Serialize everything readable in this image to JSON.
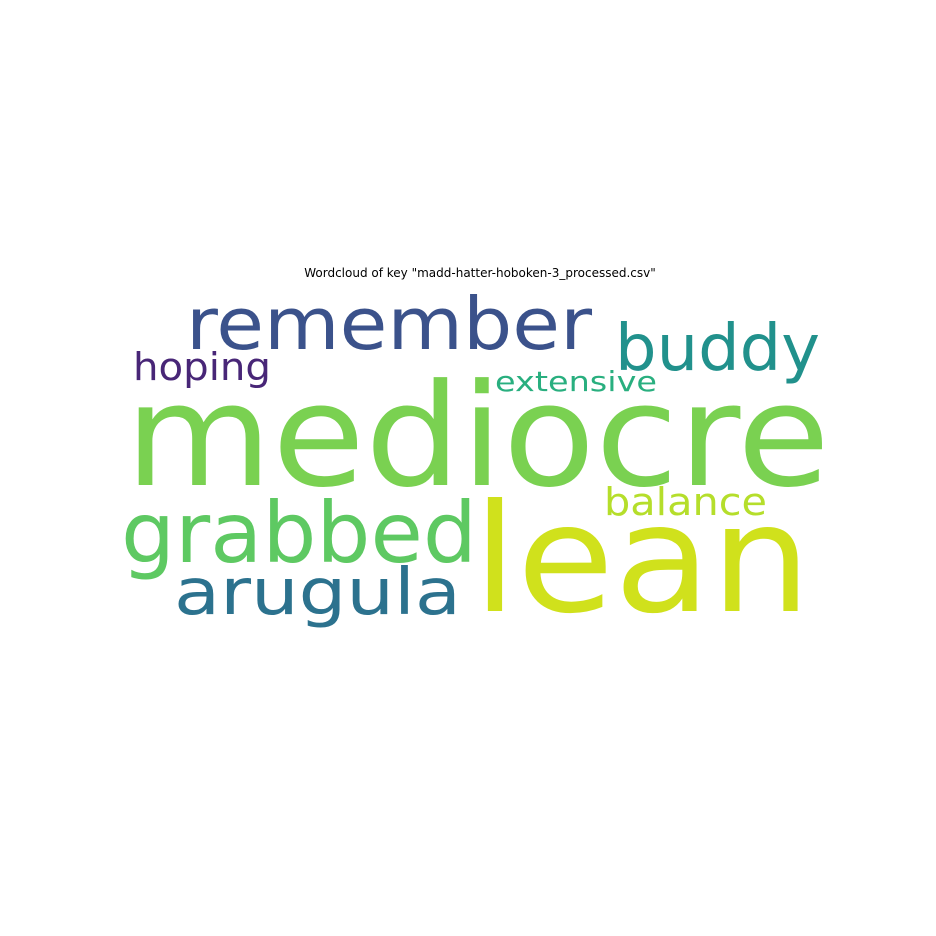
{
  "chart_data": {
    "type": "wordcloud",
    "title": "Wordcloud of key \"madd-hatter-hoboken-3_processed.csv\"",
    "words": [
      {
        "text": "mediocre",
        "color": "#7ad151"
      },
      {
        "text": "lean",
        "color": "#d0e11c"
      },
      {
        "text": "remember",
        "color": "#3b528b"
      },
      {
        "text": "grabbed",
        "color": "#5ec962"
      },
      {
        "text": "arugula",
        "color": "#2c728e"
      },
      {
        "text": "buddy",
        "color": "#21918c"
      },
      {
        "text": "balance",
        "color": "#b5de2b"
      },
      {
        "text": "hoping",
        "color": "#482677"
      },
      {
        "text": "extensive",
        "color": "#29af7f"
      }
    ]
  }
}
